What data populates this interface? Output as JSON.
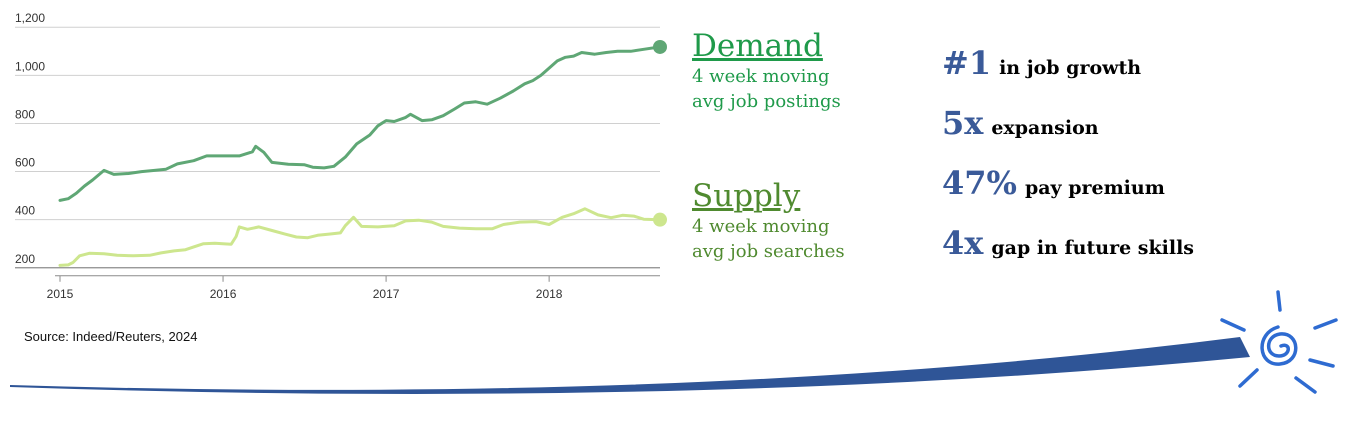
{
  "chart_data": {
    "type": "line",
    "title": "",
    "xlabel": "",
    "ylabel": "",
    "x_ticks": [
      "2015",
      "2016",
      "2017",
      "2018"
    ],
    "x_range": [
      2015.0,
      2018.68
    ],
    "y_ticks": [
      "200",
      "400",
      "600",
      "800",
      "1,000",
      "1,200"
    ],
    "ylim": [
      170,
      1230
    ],
    "grid": "horizontal",
    "series": [
      {
        "name": "Demand",
        "color": "#5fa775",
        "end_marker": true,
        "points": [
          [
            2015.0,
            480
          ],
          [
            2015.05,
            487
          ],
          [
            2015.1,
            510
          ],
          [
            2015.15,
            540
          ],
          [
            2015.2,
            565
          ],
          [
            2015.27,
            605
          ],
          [
            2015.33,
            588
          ],
          [
            2015.42,
            592
          ],
          [
            2015.5,
            600
          ],
          [
            2015.58,
            605
          ],
          [
            2015.65,
            610
          ],
          [
            2015.72,
            632
          ],
          [
            2015.82,
            645
          ],
          [
            2015.9,
            665
          ],
          [
            2016.0,
            665
          ],
          [
            2016.1,
            665
          ],
          [
            2016.18,
            682
          ],
          [
            2016.2,
            705
          ],
          [
            2016.25,
            680
          ],
          [
            2016.3,
            638
          ],
          [
            2016.4,
            630
          ],
          [
            2016.5,
            628
          ],
          [
            2016.55,
            618
          ],
          [
            2016.62,
            615
          ],
          [
            2016.68,
            622
          ],
          [
            2016.75,
            660
          ],
          [
            2016.82,
            715
          ],
          [
            2016.9,
            752
          ],
          [
            2016.95,
            790
          ],
          [
            2017.0,
            812
          ],
          [
            2017.05,
            808
          ],
          [
            2017.12,
            825
          ],
          [
            2017.15,
            838
          ],
          [
            2017.22,
            812
          ],
          [
            2017.28,
            815
          ],
          [
            2017.35,
            832
          ],
          [
            2017.42,
            860
          ],
          [
            2017.48,
            885
          ],
          [
            2017.55,
            890
          ],
          [
            2017.62,
            880
          ],
          [
            2017.7,
            905
          ],
          [
            2017.78,
            935
          ],
          [
            2017.85,
            965
          ],
          [
            2017.9,
            978
          ],
          [
            2017.95,
            1000
          ],
          [
            2018.0,
            1030
          ],
          [
            2018.05,
            1060
          ],
          [
            2018.1,
            1075
          ],
          [
            2018.15,
            1080
          ],
          [
            2018.2,
            1095
          ],
          [
            2018.28,
            1088
          ],
          [
            2018.35,
            1095
          ],
          [
            2018.42,
            1100
          ],
          [
            2018.5,
            1100
          ],
          [
            2018.58,
            1108
          ],
          [
            2018.68,
            1118
          ]
        ]
      },
      {
        "name": "Supply",
        "color": "#cde68e",
        "end_marker": true,
        "points": [
          [
            2015.0,
            210
          ],
          [
            2015.05,
            212
          ],
          [
            2015.08,
            222
          ],
          [
            2015.12,
            250
          ],
          [
            2015.18,
            260
          ],
          [
            2015.27,
            258
          ],
          [
            2015.35,
            252
          ],
          [
            2015.45,
            250
          ],
          [
            2015.55,
            252
          ],
          [
            2015.62,
            262
          ],
          [
            2015.7,
            270
          ],
          [
            2015.77,
            275
          ],
          [
            2015.82,
            287
          ],
          [
            2015.88,
            300
          ],
          [
            2015.95,
            302
          ],
          [
            2016.0,
            300
          ],
          [
            2016.05,
            298
          ],
          [
            2016.08,
            330
          ],
          [
            2016.1,
            370
          ],
          [
            2016.15,
            360
          ],
          [
            2016.22,
            370
          ],
          [
            2016.3,
            355
          ],
          [
            2016.38,
            340
          ],
          [
            2016.45,
            328
          ],
          [
            2016.52,
            325
          ],
          [
            2016.58,
            335
          ],
          [
            2016.65,
            340
          ],
          [
            2016.72,
            345
          ],
          [
            2016.75,
            375
          ],
          [
            2016.8,
            410
          ],
          [
            2016.85,
            372
          ],
          [
            2016.95,
            370
          ],
          [
            2017.05,
            375
          ],
          [
            2017.12,
            395
          ],
          [
            2017.2,
            398
          ],
          [
            2017.28,
            390
          ],
          [
            2017.35,
            372
          ],
          [
            2017.45,
            365
          ],
          [
            2017.55,
            362
          ],
          [
            2017.65,
            362
          ],
          [
            2017.72,
            380
          ],
          [
            2017.82,
            390
          ],
          [
            2017.92,
            392
          ],
          [
            2018.0,
            380
          ],
          [
            2018.08,
            410
          ],
          [
            2018.15,
            425
          ],
          [
            2018.22,
            445
          ],
          [
            2018.3,
            420
          ],
          [
            2018.38,
            408
          ],
          [
            2018.45,
            418
          ],
          [
            2018.52,
            415
          ],
          [
            2018.58,
            402
          ],
          [
            2018.68,
            400
          ]
        ]
      }
    ]
  },
  "source_note": "Source: Indeed/Reuters, 2024",
  "legend": {
    "demand": {
      "title": "Demand",
      "line1": "4 week moving",
      "line2": "avg job postings",
      "color": "#1f9a4a"
    },
    "supply": {
      "title": "Supply",
      "line1": "4 week moving",
      "line2": "avg job searches",
      "color": "#4f8a2f"
    }
  },
  "stats": [
    {
      "big": "#1",
      "text": "in job growth"
    },
    {
      "big": "5x",
      "text": "expansion"
    },
    {
      "big": "47%",
      "text": "pay premium"
    },
    {
      "big": "4x",
      "text": "gap in future skills"
    }
  ],
  "accent_color": "#2f5597",
  "logo": {
    "type": "sun-spiral",
    "color": "#2e6bd1"
  }
}
